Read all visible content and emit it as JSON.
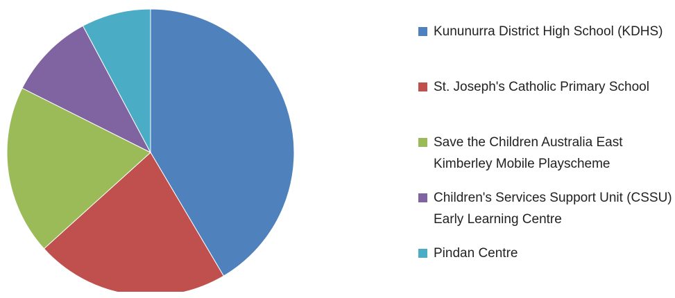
{
  "chart_data": {
    "type": "pie",
    "categories": [
      "Kununurra District High School (KDHS)",
      "St. Joseph's Catholic Primary School",
      "Save the Children Australia East Kimberley Mobile Playscheme",
      "Children's Services Support Unit (CSSU) Early Learning Centre",
      "Pindan Centre"
    ],
    "values": [
      41.5,
      21.8,
      19.1,
      9.8,
      7.8
    ],
    "colors": [
      "#4f81bd",
      "#c0504d",
      "#9bbb59",
      "#8064a2",
      "#4bacc6"
    ],
    "legend": "right"
  }
}
